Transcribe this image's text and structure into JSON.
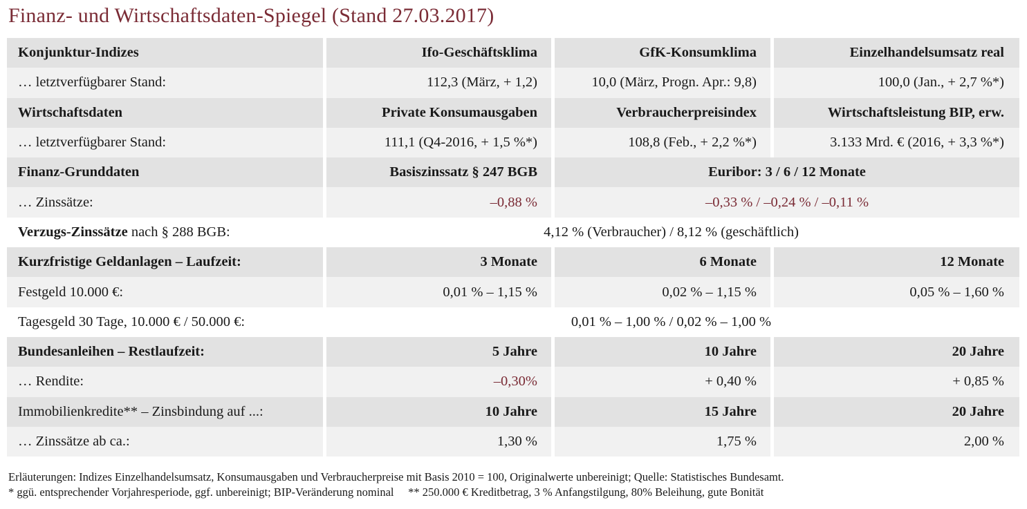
{
  "title": "Finanz- und Wirtschaftsdaten-Spiegel (Stand 27.03.2017)",
  "sections": {
    "konjunktur": {
      "label": "Konjunktur-Indizes",
      "headers": [
        "Ifo-Geschäftsklima",
        "GfK-Konsumklima",
        "Einzelhandelsumsatz real"
      ],
      "row_label": "… letztverfügbarer Stand:",
      "values": [
        "112,3 (März, + 1,2)",
        "10,0 (März, Progn. Apr.: 9,8)",
        "100,0 (Jan., + 2,7 %*)"
      ]
    },
    "wirtschaft": {
      "label": "Wirtschaftsdaten",
      "headers": [
        "Private Konsumausgaben",
        "Verbraucherpreisindex",
        "Wirtschaftsleistung BIP,  erw."
      ],
      "row_label": "… letztverfügbarer Stand:",
      "values": [
        "111,1 (Q4-2016, + 1,5 %*)",
        "108,8 (Feb., + 2,2 %*)",
        "3.133 Mrd. € (2016, + 3,3 %*)"
      ]
    },
    "finanz": {
      "label": "Finanz-Grunddaten",
      "headers": [
        "Basiszinssatz § 247 BGB",
        "Euribor: 3 / 6 / 12 Monate"
      ],
      "row_label": "… Zinssätze:",
      "values": [
        "–0,88 %",
        "–0,33 % / –0,24 % / –0,11 %"
      ]
    },
    "verzug": {
      "label_bold": "Verzugs-Zinssätze",
      "label_rest": " nach § 288 BGB:",
      "value": "4,12 % (Verbraucher) / 8,12 % (geschäftlich)"
    },
    "geldanlagen": {
      "label": "Kurzfristige Geldanlagen – Laufzeit:",
      "headers": [
        "3 Monate",
        "6 Monate",
        "12 Monate"
      ],
      "festgeld_label": "Festgeld 10.000 €:",
      "festgeld_values": [
        "0,01 % – 1,15 %",
        "0,02 % – 1,15 %",
        "0,05 % – 1,60 %"
      ],
      "tagesgeld_label": "Tagesgeld 30 Tage, 10.000 € / 50.000 €:",
      "tagesgeld_value": "0,01 % – 1,00 % / 0,02 % – 1,00 %"
    },
    "bund": {
      "label": "Bundesanleihen – Restlaufzeit:",
      "headers": [
        "5 Jahre",
        "10 Jahre",
        "20 Jahre"
      ],
      "row_label": "… Rendite:",
      "values": [
        "–0,30%",
        "+ 0,40 %",
        "+ 0,85 %"
      ]
    },
    "immo": {
      "label": "Immobilienkredite** – Zinsbindung auf ...:",
      "headers": [
        "10 Jahre",
        "15 Jahre",
        "20 Jahre"
      ],
      "row_label": "… Zinssätze ab ca.:",
      "values": [
        "1,30 %",
        "1,75 %",
        "2,00 %"
      ]
    }
  },
  "notes": {
    "line1": "Erläuterungen: Indizes Einzelhandelsumsatz, Konsumausgaben und Verbraucherpreise mit Basis 2010 = 100, Originalwerte unbereinigt; Quelle: Statistisches Bundesamt.",
    "line2": "* ggü. entsprechender Vorjahresperiode, ggf. unbereinigt; BIP-Veränderung nominal     ** 250.000 € Kreditbetrag, 3 % Anfangstilgung, 80% Beleihung, gute Bonität"
  },
  "colors": {
    "accent": "#7a2b35",
    "row_dark": "#e2e2e2",
    "row_light": "#f1f1f1"
  }
}
